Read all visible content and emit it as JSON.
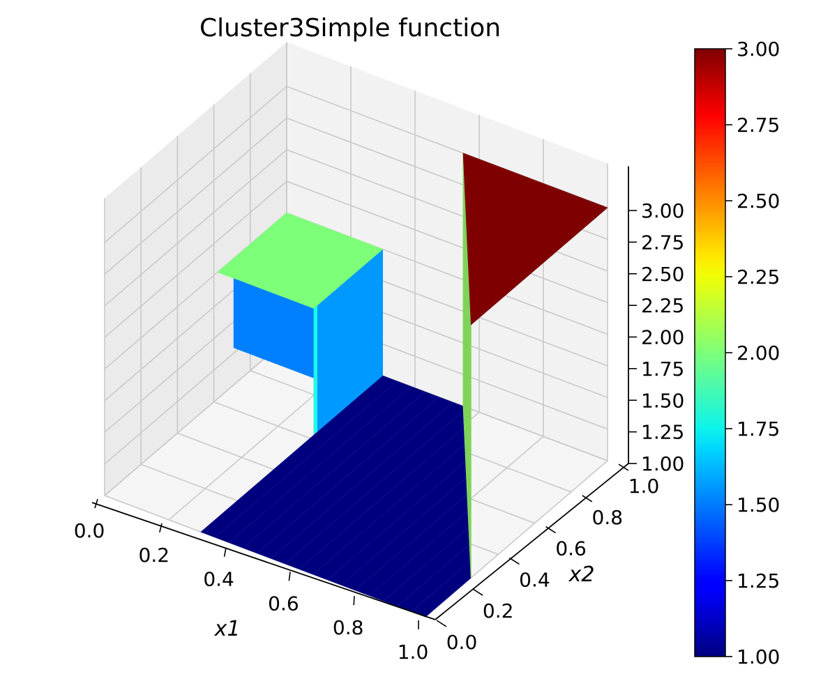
{
  "chart_data": {
    "type": "surface3d",
    "title": "Cluster3Simple function",
    "xlabel": "x1",
    "ylabel": "x2",
    "zlabel": "",
    "xlim": [
      0.0,
      1.0
    ],
    "ylim": [
      0.0,
      1.0
    ],
    "zlim": [
      1.0,
      3.0
    ],
    "x_ticks": [
      "0.0",
      "0.2",
      "0.4",
      "0.6",
      "0.8",
      "1.0"
    ],
    "y_ticks": [
      "0.0",
      "0.2",
      "0.4",
      "0.6",
      "0.8",
      "1.0"
    ],
    "z_ticks": [
      "1.00",
      "1.25",
      "1.50",
      "1.75",
      "2.00",
      "2.25",
      "2.50",
      "2.75",
      "3.00"
    ],
    "colormap": "jet",
    "colorbar": {
      "range": [
        1.0,
        3.0
      ],
      "ticks": [
        "1.00",
        "1.25",
        "1.50",
        "1.75",
        "2.00",
        "2.25",
        "2.50",
        "2.75",
        "3.00"
      ]
    },
    "grid": true,
    "regions": [
      {
        "name": "base plane",
        "z": 1.0,
        "color": "#00007f"
      },
      {
        "name": "corner plateau near x1=0, x2=1",
        "z": 2.0,
        "color": "#7dff7a"
      },
      {
        "name": "upper triangle near x1=1, x2=1",
        "z": 3.0,
        "color": "#7f0000"
      }
    ]
  }
}
